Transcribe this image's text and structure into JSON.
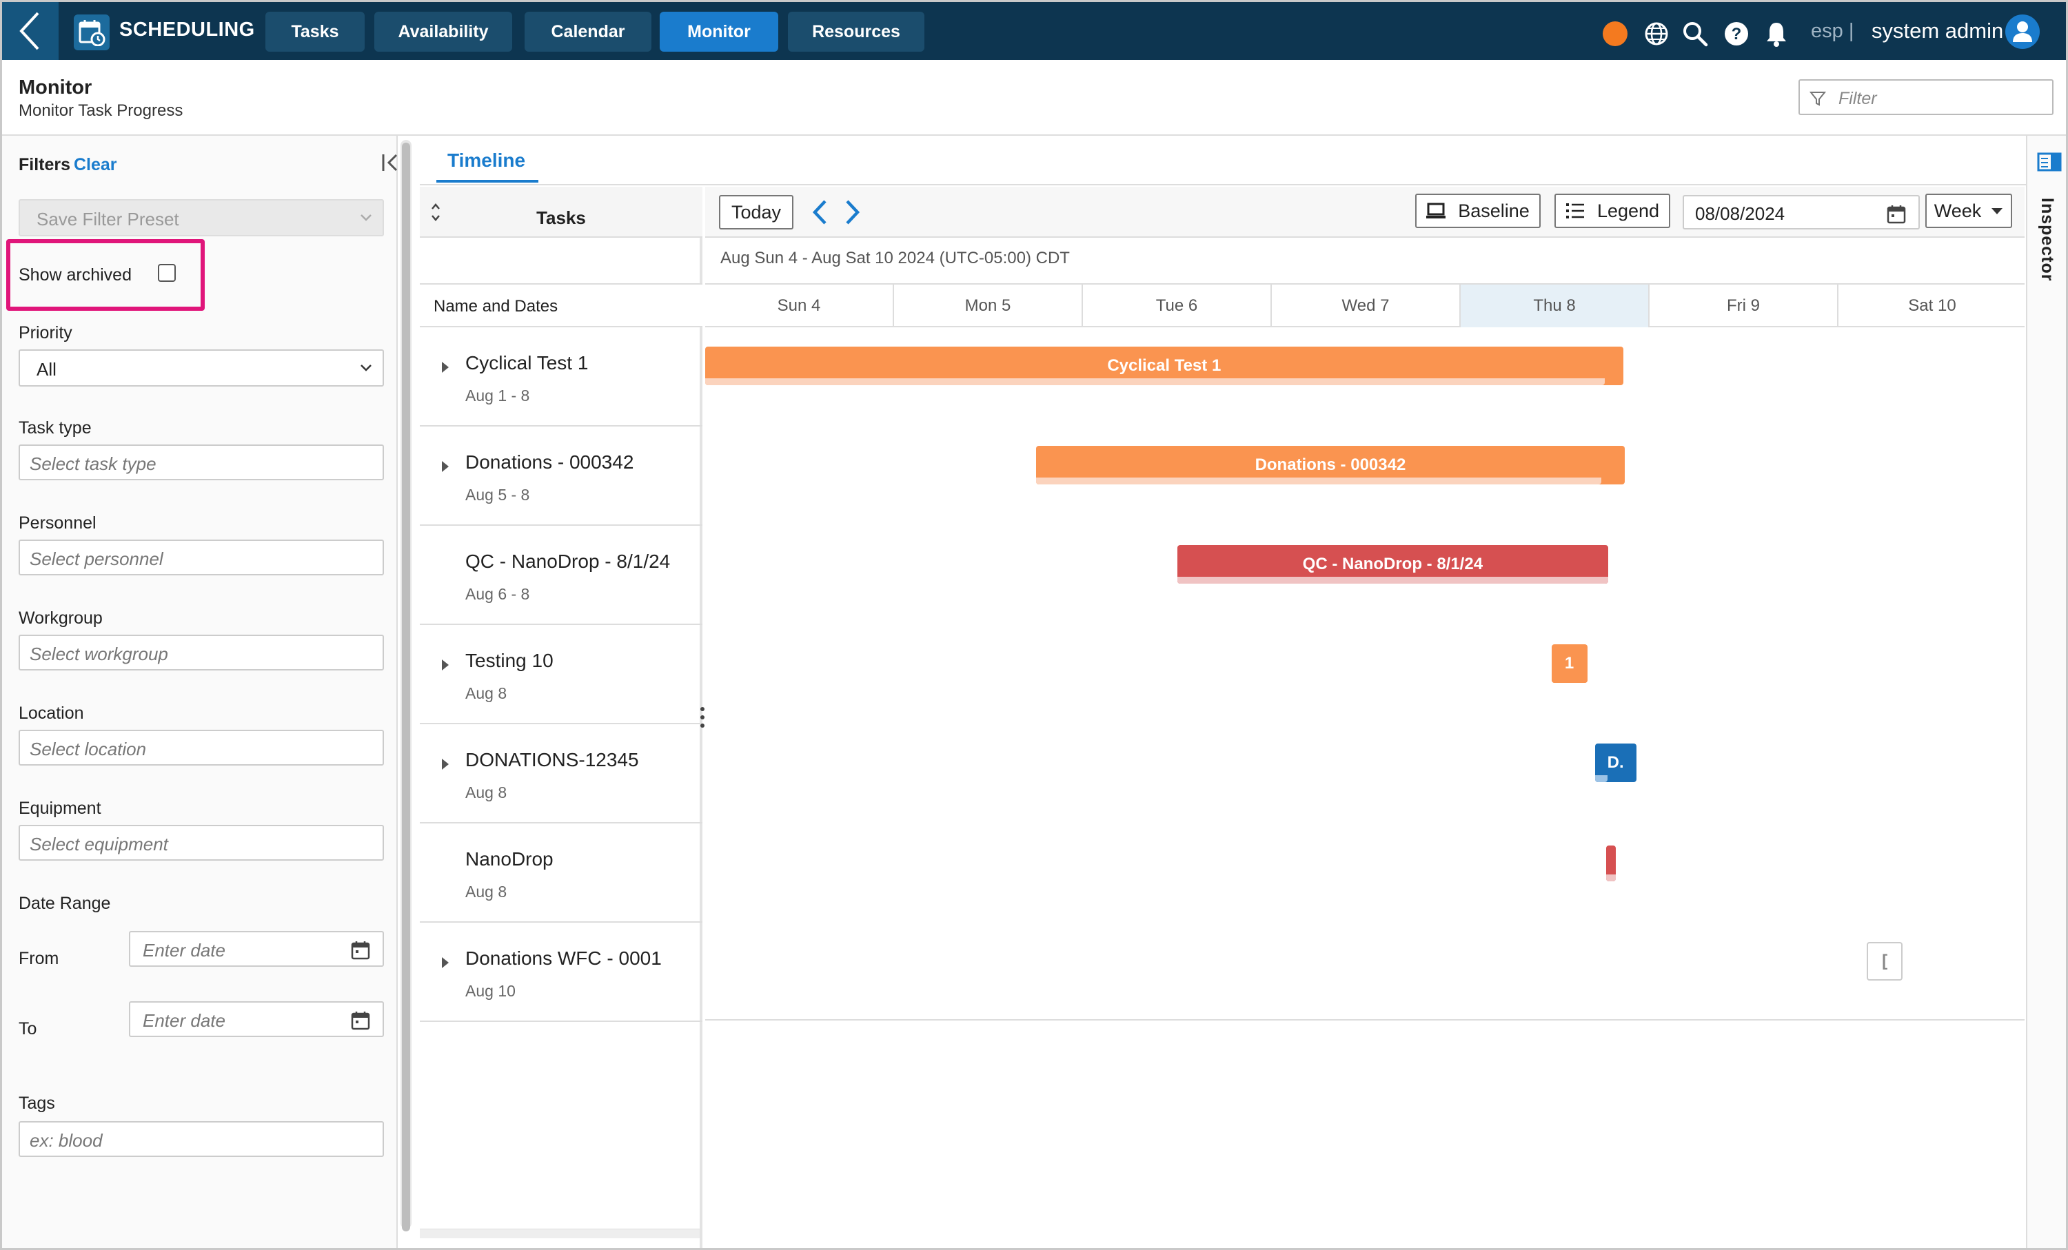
{
  "app": {
    "title": "SCHEDULING"
  },
  "nav": {
    "tabs": [
      {
        "label": "Tasks",
        "active": false
      },
      {
        "label": "Availability",
        "active": false
      },
      {
        "label": "Calendar",
        "active": false
      },
      {
        "label": "Monitor",
        "active": true
      },
      {
        "label": "Resources",
        "active": false
      }
    ]
  },
  "topbar": {
    "status_color": "#f47a1f",
    "esp_label": "esp |",
    "user_name": "system admin",
    "icons": [
      "globe-icon",
      "search-icon",
      "help-icon",
      "bell-icon",
      "user-avatar-icon"
    ]
  },
  "page": {
    "title": "Monitor",
    "subtitle": "Monitor Task Progress",
    "filter_placeholder": "Filter"
  },
  "filters": {
    "title": "Filters",
    "clear_label": "Clear",
    "preset_placeholder": "Save Filter Preset",
    "show_archived_label": "Show archived",
    "show_archived_checked": false,
    "priority_label": "Priority",
    "priority_value": "All",
    "task_type_label": "Task type",
    "task_type_placeholder": "Select task type",
    "personnel_label": "Personnel",
    "personnel_placeholder": "Select personnel",
    "workgroup_label": "Workgroup",
    "workgroup_placeholder": "Select workgroup",
    "location_label": "Location",
    "location_placeholder": "Select location",
    "equipment_label": "Equipment",
    "equipment_placeholder": "Select equipment",
    "date_range_label": "Date Range",
    "from_label": "From",
    "from_placeholder": "Enter date",
    "to_label": "To",
    "to_placeholder": "Enter date",
    "tags_label": "Tags",
    "tags_placeholder": "ex: blood"
  },
  "main": {
    "tab_label": "Timeline",
    "tasks_header": "Tasks",
    "tasks_subheader": "Name and Dates",
    "toolbar": {
      "today_label": "Today",
      "baseline_label": "Baseline",
      "legend_label": "Legend",
      "date_value": "08/08/2024",
      "view_value": "Week"
    },
    "range_label": "Aug Sun 4 - Aug Sat 10 2024 (UTC-05:00) CDT",
    "days": [
      {
        "label": "Sun 4",
        "today": false
      },
      {
        "label": "Mon 5",
        "today": false
      },
      {
        "label": "Tue 6",
        "today": false
      },
      {
        "label": "Wed 7",
        "today": false
      },
      {
        "label": "Thu 8",
        "today": true
      },
      {
        "label": "Fri 9",
        "today": false
      },
      {
        "label": "Sat 10",
        "today": false
      }
    ],
    "tasks": [
      {
        "name": "Cyclical Test 1",
        "dates": "Aug 1 - 8",
        "expandable": true
      },
      {
        "name": "Donations - 000342",
        "dates": "Aug 5 - 8",
        "expandable": true
      },
      {
        "name": "QC - NanoDrop - 8/1/24",
        "dates": "Aug 6 - 8",
        "expandable": false
      },
      {
        "name": "Testing 10",
        "dates": "Aug 8",
        "expandable": true
      },
      {
        "name": "DONATIONS-12345",
        "dates": "Aug 8",
        "expandable": true
      },
      {
        "name": "NanoDrop",
        "dates": "Aug 8",
        "expandable": false
      },
      {
        "name": "Donations WFC - 0001",
        "dates": "Aug 10",
        "expandable": true
      }
    ],
    "bars": [
      {
        "label": "Cyclical Test 1",
        "start_day": -3.0,
        "end_day": 4.86,
        "color": "#fa9450",
        "progress_color": "#fbd3bd",
        "progress": 0.98,
        "outlined": false
      },
      {
        "label": "Donations - 000342",
        "start_day": 1.75,
        "end_day": 4.87,
        "color": "#fa9450",
        "progress_color": "#fbd3bd",
        "progress": 0.96,
        "outlined": false
      },
      {
        "label": "QC - NanoDrop - 8/1/24",
        "start_day": 2.5,
        "end_day": 4.78,
        "color": "#d65051",
        "progress_color": "#f0c3c3",
        "progress": 1.0,
        "outlined": false
      },
      {
        "label": "1",
        "start_day": 4.48,
        "end_day": 4.67,
        "color": "#fa9450",
        "progress_color": "#fa9450",
        "progress": 1.0,
        "outlined": false
      },
      {
        "label": "D.",
        "start_day": 4.71,
        "end_day": 4.93,
        "color": "#1a6fb7",
        "progress_color": "#9cc3e6",
        "progress": 0.3,
        "outlined": false
      },
      {
        "label": "",
        "start_day": 4.77,
        "end_day": 4.82,
        "color": "#d65051",
        "progress_color": "#f0c3c3",
        "progress": 1.0,
        "outlined": false
      },
      {
        "label": "[",
        "start_day": 6.15,
        "end_day": 6.34,
        "color": "#ffffff",
        "progress_color": "#ffffff",
        "progress": 0.0,
        "outlined": true
      }
    ]
  },
  "inspector": {
    "label": "Inspector"
  }
}
